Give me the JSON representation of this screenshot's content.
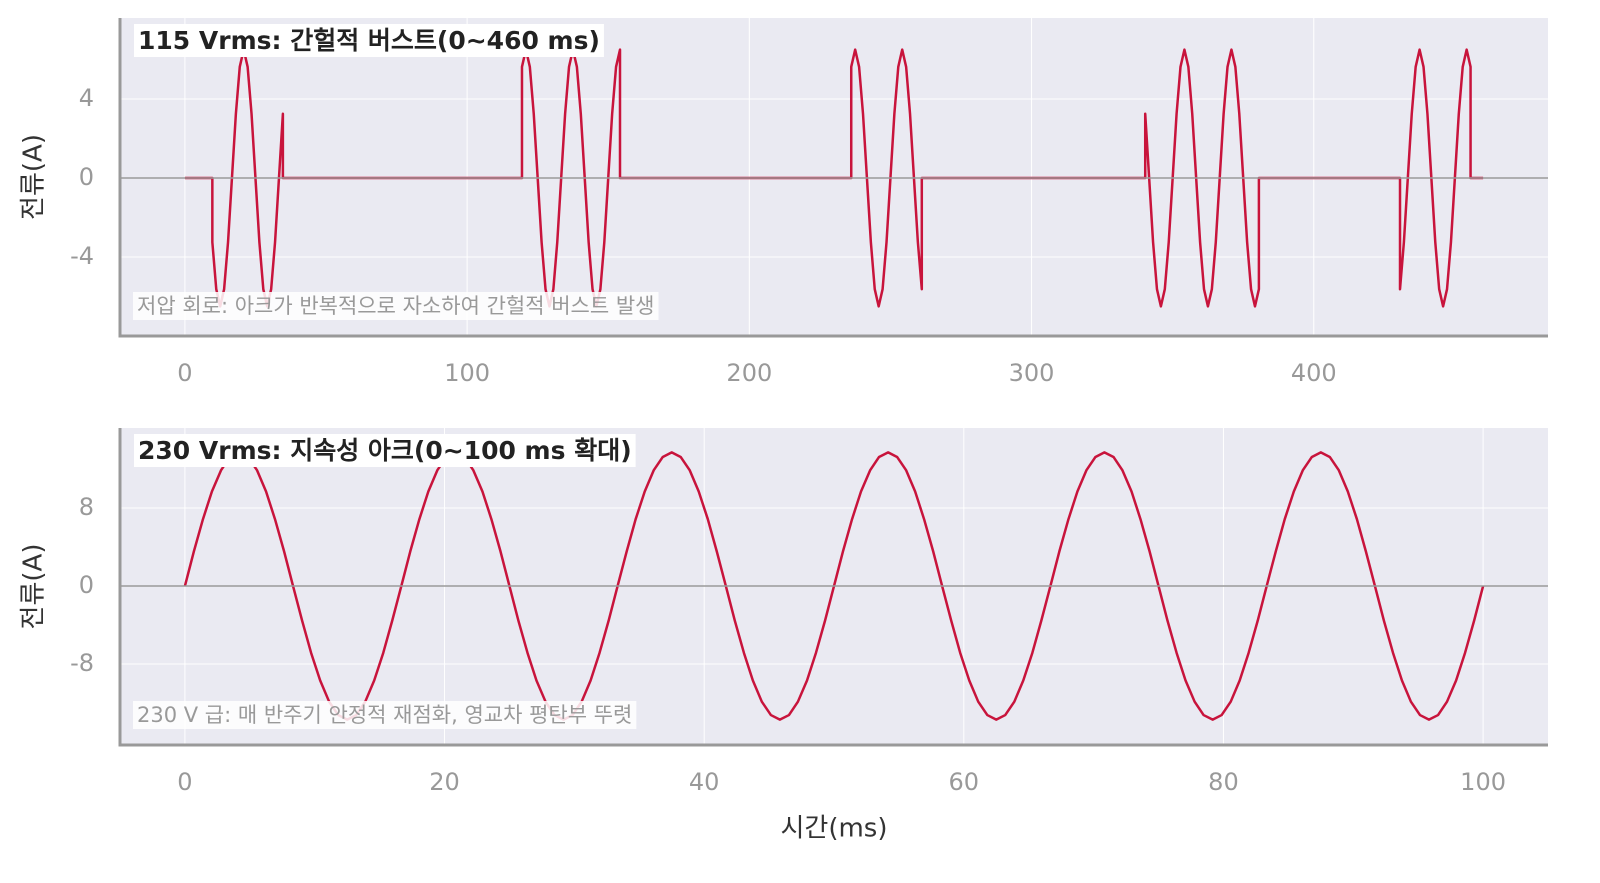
{
  "chart_data": [
    {
      "type": "line",
      "title": "115 Vrms: 간헐적 버스트(0~460 ms)",
      "annotation": "저압 회로: 아크가 반복적으로 자소하여 간헐적 버스트 발생",
      "ylabel": "전류(A)",
      "color": "#c8143c",
      "grid": true,
      "hline": 0,
      "xlim": [
        -23,
        483
      ],
      "ylim": [
        -8,
        8.1
      ],
      "xticks": [
        0,
        100,
        200,
        300,
        400
      ],
      "yticks": [
        -4,
        0,
        4
      ],
      "x": [
        0,
        9.72,
        9.72,
        11.11,
        12.5,
        13.89,
        15.28,
        16.67,
        18.06,
        19.44,
        20.83,
        22.22,
        23.61,
        25,
        26.39,
        27.78,
        29.17,
        30.56,
        31.94,
        33.33,
        34.72,
        34.72,
        119.44,
        119.44,
        120.83,
        122.22,
        123.61,
        125,
        126.39,
        127.78,
        129.17,
        130.56,
        131.94,
        133.33,
        134.72,
        136.11,
        137.5,
        138.89,
        140.28,
        141.67,
        143.06,
        144.44,
        145.83,
        147.22,
        148.61,
        150,
        151.39,
        152.78,
        154.17,
        154.17,
        236.11,
        236.11,
        237.5,
        238.89,
        240.28,
        241.67,
        243.06,
        244.44,
        245.83,
        247.22,
        248.61,
        250,
        251.39,
        252.78,
        254.17,
        255.56,
        256.94,
        258.33,
        259.72,
        261.11,
        261.11,
        340.28,
        340.28,
        341.67,
        343.06,
        344.44,
        345.83,
        347.22,
        348.61,
        350,
        351.39,
        352.78,
        354.17,
        355.56,
        356.94,
        358.33,
        359.72,
        361.11,
        362.5,
        363.89,
        365.28,
        366.67,
        368.06,
        369.44,
        370.83,
        372.22,
        373.61,
        375,
        376.39,
        377.78,
        379.17,
        380.56,
        380.56,
        430.56,
        430.56,
        431.94,
        433.33,
        434.72,
        436.11,
        437.5,
        438.89,
        440.28,
        441.67,
        443.06,
        444.44,
        445.83,
        447.22,
        448.61,
        450,
        451.39,
        452.78,
        454.17,
        455.56,
        455.56,
        460
      ],
      "values": [
        0,
        0,
        -3.25,
        -5.63,
        -6.5,
        -5.63,
        -3.25,
        0,
        3.25,
        5.63,
        6.5,
        5.63,
        3.25,
        0,
        -3.25,
        -5.63,
        -6.5,
        -5.63,
        -3.25,
        0,
        3.25,
        0,
        0,
        5.63,
        6.5,
        5.63,
        3.25,
        0,
        -3.25,
        -5.63,
        -6.5,
        -5.63,
        -3.25,
        0,
        3.25,
        5.63,
        6.5,
        5.63,
        3.25,
        0,
        -3.25,
        -5.63,
        -6.5,
        -5.63,
        -3.25,
        0,
        3.25,
        5.63,
        6.5,
        0,
        0,
        5.63,
        6.5,
        5.63,
        3.25,
        0,
        -3.25,
        -5.63,
        -6.5,
        -5.63,
        -3.25,
        0,
        3.25,
        5.63,
        6.5,
        5.63,
        3.25,
        0,
        -3.25,
        -5.63,
        0,
        0,
        3.25,
        0,
        -3.25,
        -5.63,
        -6.5,
        -5.63,
        -3.25,
        0,
        3.25,
        5.63,
        6.5,
        5.63,
        3.25,
        0,
        -3.25,
        -5.63,
        -6.5,
        -5.63,
        -3.25,
        0,
        3.25,
        5.63,
        6.5,
        5.63,
        3.25,
        0,
        -3.25,
        -5.63,
        -6.5,
        -5.63,
        0,
        0,
        -5.63,
        -3.25,
        0,
        3.25,
        5.63,
        6.5,
        5.63,
        3.25,
        0,
        -3.25,
        -5.63,
        -6.5,
        -5.63,
        -3.25,
        0,
        3.25,
        5.63,
        6.5,
        5.63,
        0,
        0
      ]
    },
    {
      "type": "line",
      "title": "230 Vrms: 지속성 아크(0~100 ms 확대)",
      "annotation": "230 V 급: 매 반주기 안정적 재점화, 영교차 평탄부 뚜렷",
      "ylabel": "전류(A)",
      "xlabel": "시간(ms)",
      "color": "#c8143c",
      "grid": true,
      "hline": 0,
      "xlim": [
        -5,
        105
      ],
      "ylim": [
        -16.3,
        16.2
      ],
      "xticks": [
        0,
        20,
        40,
        60,
        80,
        100
      ],
      "yticks": [
        -8,
        0,
        8
      ],
      "x": [
        0,
        0.69,
        1.39,
        2.08,
        2.78,
        3.47,
        4.17,
        4.86,
        5.56,
        6.25,
        6.94,
        7.64,
        8.33,
        9.03,
        9.72,
        10.42,
        11.11,
        11.81,
        12.5,
        13.19,
        13.89,
        14.58,
        15.28,
        15.97,
        16.67,
        17.36,
        18.06,
        18.75,
        19.44,
        20.14,
        20.83,
        21.53,
        22.22,
        22.92,
        23.61,
        24.31,
        25,
        25.69,
        26.39,
        27.08,
        27.78,
        28.47,
        29.17,
        29.86,
        30.56,
        31.25,
        31.94,
        32.64,
        33.33,
        34.03,
        34.72,
        35.42,
        36.11,
        36.81,
        37.5,
        38.19,
        38.89,
        39.58,
        40.28,
        40.97,
        41.67,
        42.36,
        43.06,
        43.75,
        44.44,
        45.14,
        45.83,
        46.53,
        47.22,
        47.92,
        48.61,
        49.31,
        50,
        50.69,
        51.39,
        52.08,
        52.78,
        53.47,
        54.17,
        54.86,
        55.56,
        56.25,
        56.94,
        57.64,
        58.33,
        59.03,
        59.72,
        60.42,
        61.11,
        61.81,
        62.5,
        63.19,
        63.89,
        64.58,
        65.28,
        65.97,
        66.67,
        67.36,
        68.06,
        68.75,
        69.44,
        70.14,
        70.83,
        71.53,
        72.22,
        72.92,
        73.61,
        74.31,
        75,
        75.69,
        76.39,
        77.08,
        77.78,
        78.47,
        79.17,
        79.86,
        80.56,
        81.25,
        81.94,
        82.64,
        83.33,
        84.03,
        84.72,
        85.42,
        86.11,
        86.81,
        87.5,
        88.19,
        88.89,
        89.58,
        90.28,
        90.97,
        91.67,
        92.36,
        93.06,
        93.75,
        94.44,
        95.14,
        95.83,
        96.53,
        97.22,
        97.92,
        98.61,
        99.31,
        100
      ],
      "values": [
        0,
        3.55,
        6.85,
        9.69,
        11.86,
        13.23,
        13.7,
        13.23,
        11.86,
        9.69,
        6.85,
        3.55,
        0,
        -3.55,
        -6.85,
        -9.69,
        -11.86,
        -13.23,
        -13.7,
        -13.23,
        -11.86,
        -9.69,
        -6.85,
        -3.55,
        0,
        3.55,
        6.85,
        9.69,
        11.86,
        13.23,
        13.7,
        13.23,
        11.86,
        9.69,
        6.85,
        3.55,
        0,
        -3.55,
        -6.85,
        -9.69,
        -11.86,
        -13.23,
        -13.7,
        -13.23,
        -11.86,
        -9.69,
        -6.85,
        -3.55,
        0,
        3.55,
        6.85,
        9.69,
        11.86,
        13.23,
        13.7,
        13.23,
        11.86,
        9.69,
        6.85,
        3.55,
        0,
        -3.55,
        -6.85,
        -9.69,
        -11.86,
        -13.23,
        -13.7,
        -13.23,
        -11.86,
        -9.69,
        -6.85,
        -3.55,
        0,
        3.55,
        6.85,
        9.69,
        11.86,
        13.23,
        13.7,
        13.23,
        11.86,
        9.69,
        6.85,
        3.55,
        0,
        -3.55,
        -6.85,
        -9.69,
        -11.86,
        -13.23,
        -13.7,
        -13.23,
        -11.86,
        -9.69,
        -6.85,
        -3.55,
        0,
        3.55,
        6.85,
        9.69,
        11.86,
        13.23,
        13.7,
        13.23,
        11.86,
        9.69,
        6.85,
        3.55,
        0,
        -3.55,
        -6.85,
        -9.69,
        -11.86,
        -13.23,
        -13.7,
        -13.23,
        -11.86,
        -9.69,
        -6.85,
        -3.55,
        0,
        3.55,
        6.85,
        9.69,
        11.86,
        13.23,
        13.7,
        13.23,
        11.86,
        9.69,
        6.85,
        3.55,
        0,
        -3.55,
        -6.85,
        -9.69,
        -11.86,
        -13.23,
        -13.7,
        -13.23,
        -11.86,
        -9.69,
        -6.85,
        -3.55,
        0
      ]
    }
  ]
}
